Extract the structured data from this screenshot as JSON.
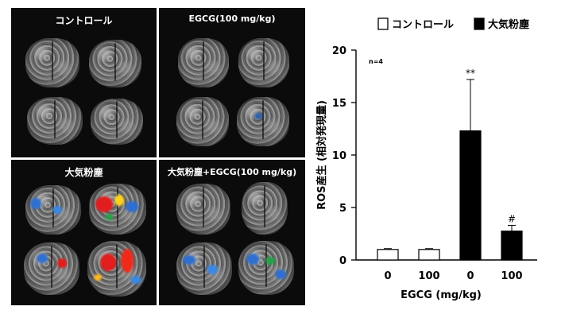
{
  "panels": {
    "top_left_title": "コントロール",
    "top_right_title": "EGCG(100 mg/kg)",
    "bottom_left_title": "大気粉塵",
    "bottom_right_title": "大気粉塵+EGCG(100 mg/kg)"
  },
  "legend": {
    "items": [
      {
        "label": "コントロール",
        "fill": "#ffffff"
      },
      {
        "label": "大気粉塵",
        "fill": "#000000"
      }
    ]
  },
  "chart_data": {
    "type": "bar",
    "categories": [
      "0",
      "100",
      "0",
      "100"
    ],
    "values": [
      1.0,
      1.0,
      12.3,
      2.75
    ],
    "errors": [
      0.08,
      0.08,
      4.9,
      0.55
    ],
    "fills": [
      "#ffffff",
      "#ffffff",
      "#000000",
      "#000000"
    ],
    "annotations": [
      "",
      "",
      "**",
      "#"
    ],
    "n_label": "n=4",
    "xlabel": "EGCG (mg/kg)",
    "ylabel": "ROS産生 (相対発現量)",
    "ylim": [
      0,
      20
    ],
    "yticks": [
      0,
      5,
      10,
      15,
      20
    ],
    "grid": false,
    "legend_position": "top"
  }
}
